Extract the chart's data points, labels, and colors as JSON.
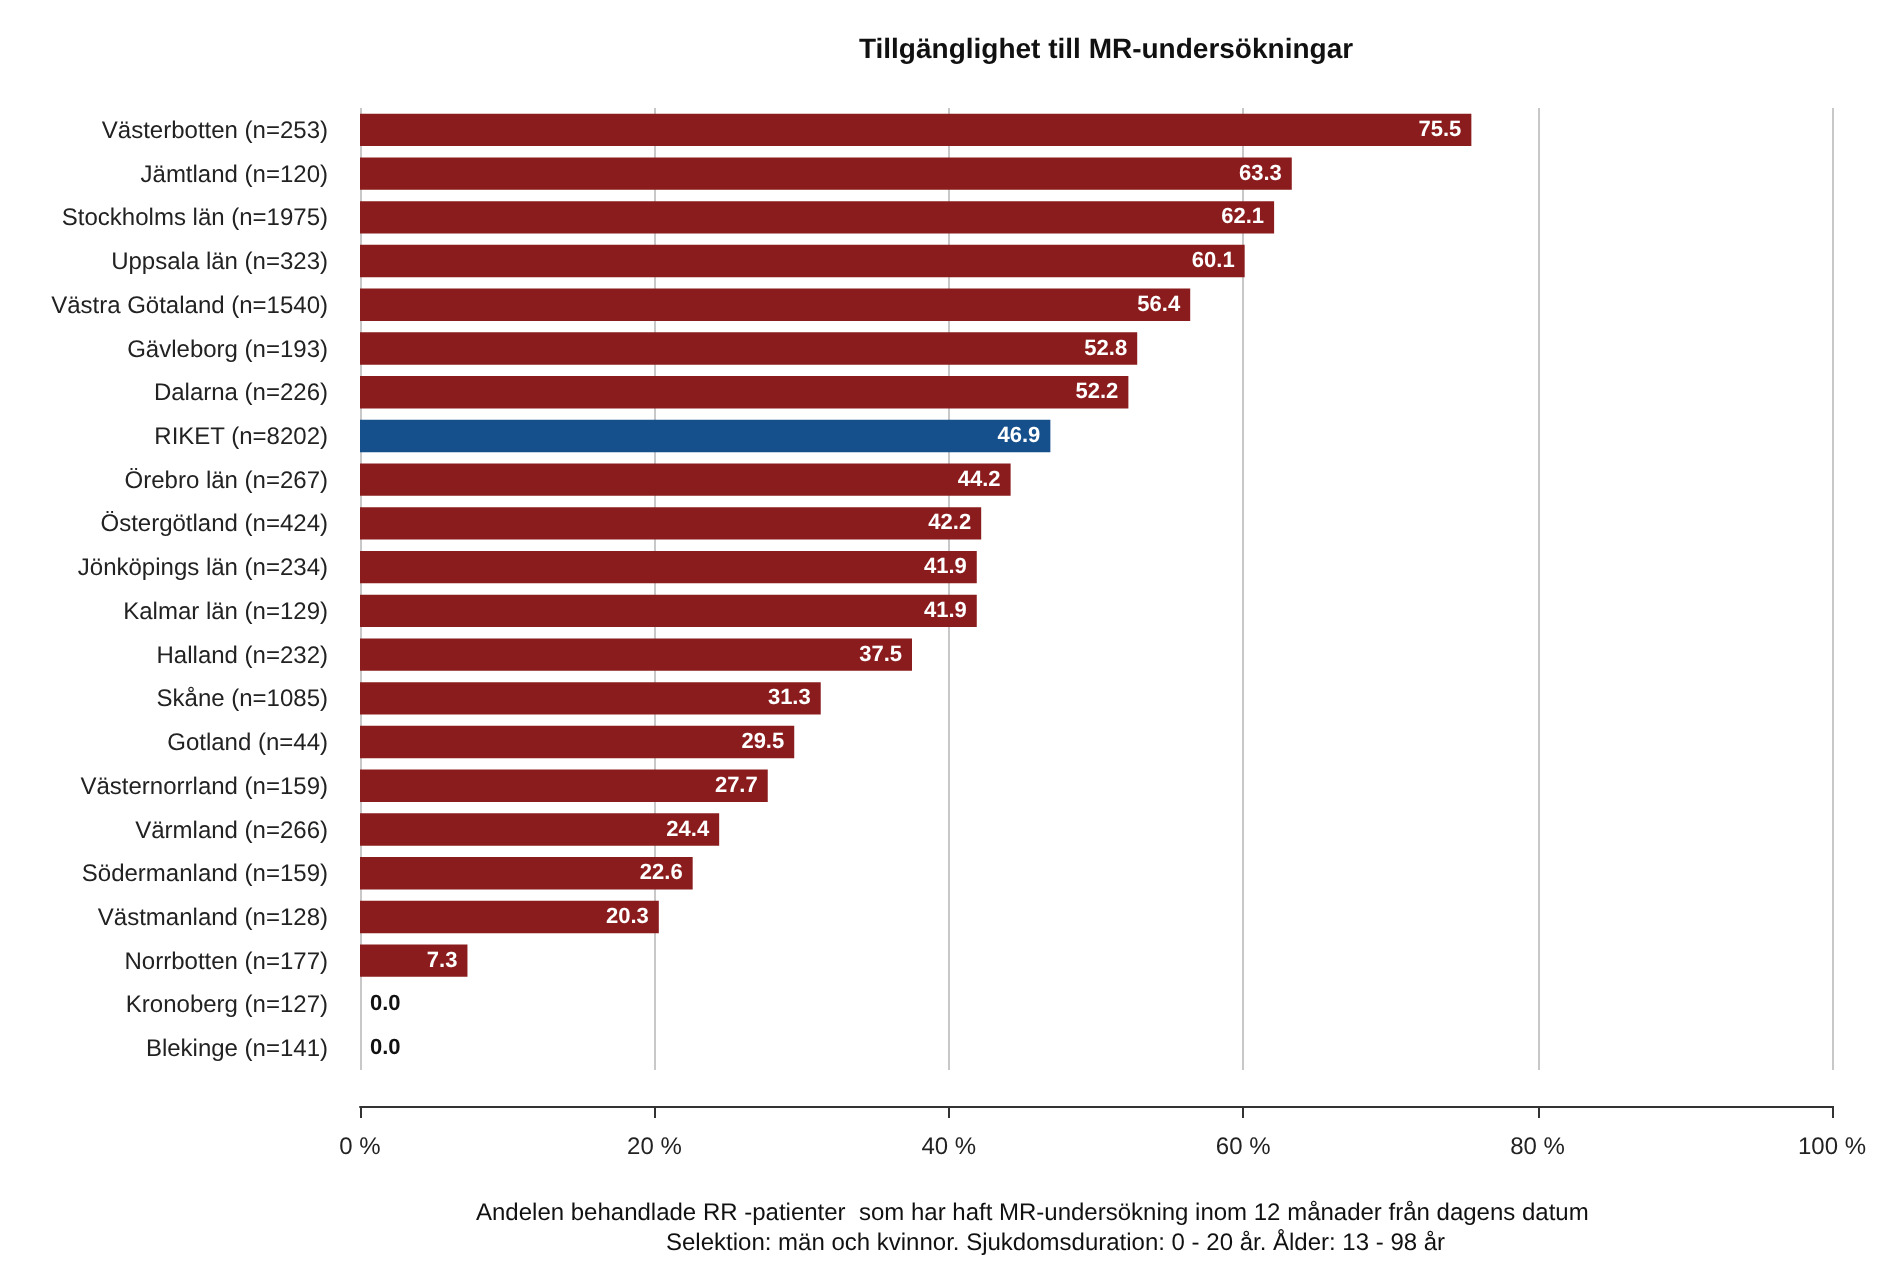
{
  "chart_data": {
    "type": "bar",
    "orientation": "horizontal",
    "title": "Tillgänglighet till MR-undersökningar",
    "xlabel": "Andelen behandlade RR -patienter  som har haft MR-undersökning inom 12 månader från dagens datum",
    "annotations": [
      "Selektion: män och kvinnor. Sjukdomsduration: 0 - 20 år. Ålder: 13 - 98 år"
    ],
    "categories": [
      "Västerbotten (n=253)",
      "Jämtland (n=120)",
      "Stockholms län (n=1975)",
      "Uppsala län (n=323)",
      "Västra Götaland (n=1540)",
      "Gävleborg (n=193)",
      "Dalarna (n=226)",
      "RIKET (n=8202)",
      "Örebro län (n=267)",
      "Östergötland (n=424)",
      "Jönköpings län (n=234)",
      "Kalmar län (n=129)",
      "Halland (n=232)",
      "Skåne (n=1085)",
      "Gotland (n=44)",
      "Västernorrland (n=159)",
      "Värmland (n=266)",
      "Södermanland (n=159)",
      "Västmanland (n=128)",
      "Norrbotten (n=177)",
      "Kronoberg (n=127)",
      "Blekinge (n=141)"
    ],
    "values": [
      75.5,
      63.3,
      62.1,
      60.1,
      56.4,
      52.8,
      52.2,
      46.9,
      44.2,
      42.2,
      41.9,
      41.9,
      37.5,
      31.3,
      29.5,
      27.7,
      24.4,
      22.6,
      20.3,
      7.3,
      0.0,
      0.0
    ],
    "colors": [
      "#8b1c1e",
      "#8b1c1e",
      "#8b1c1e",
      "#8b1c1e",
      "#8b1c1e",
      "#8b1c1e",
      "#8b1c1e",
      "#154f8c",
      "#8b1c1e",
      "#8b1c1e",
      "#8b1c1e",
      "#8b1c1e",
      "#8b1c1e",
      "#8b1c1e",
      "#8b1c1e",
      "#8b1c1e",
      "#8b1c1e",
      "#8b1c1e",
      "#8b1c1e",
      "#8b1c1e",
      "#8b1c1e",
      "#8b1c1e"
    ],
    "xlim": [
      0,
      100
    ],
    "xticks": [
      {
        "value": 0,
        "label": "0 %"
      },
      {
        "value": 20,
        "label": "20 %"
      },
      {
        "value": 40,
        "label": "40 %"
      },
      {
        "value": 60,
        "label": "60 %"
      },
      {
        "value": 80,
        "label": "80 %"
      },
      {
        "value": 100,
        "label": "100 %"
      }
    ],
    "value_labels": [
      "75.5",
      "63.3",
      "62.1",
      "60.1",
      "56.4",
      "52.8",
      "52.2",
      "46.9",
      "44.2",
      "42.2",
      "41.9",
      "41.9",
      "37.5",
      "31.3",
      "29.5",
      "27.7",
      "24.4",
      "22.6",
      "20.3",
      "7.3",
      "0.0",
      "0.0"
    ],
    "grid": "x"
  }
}
